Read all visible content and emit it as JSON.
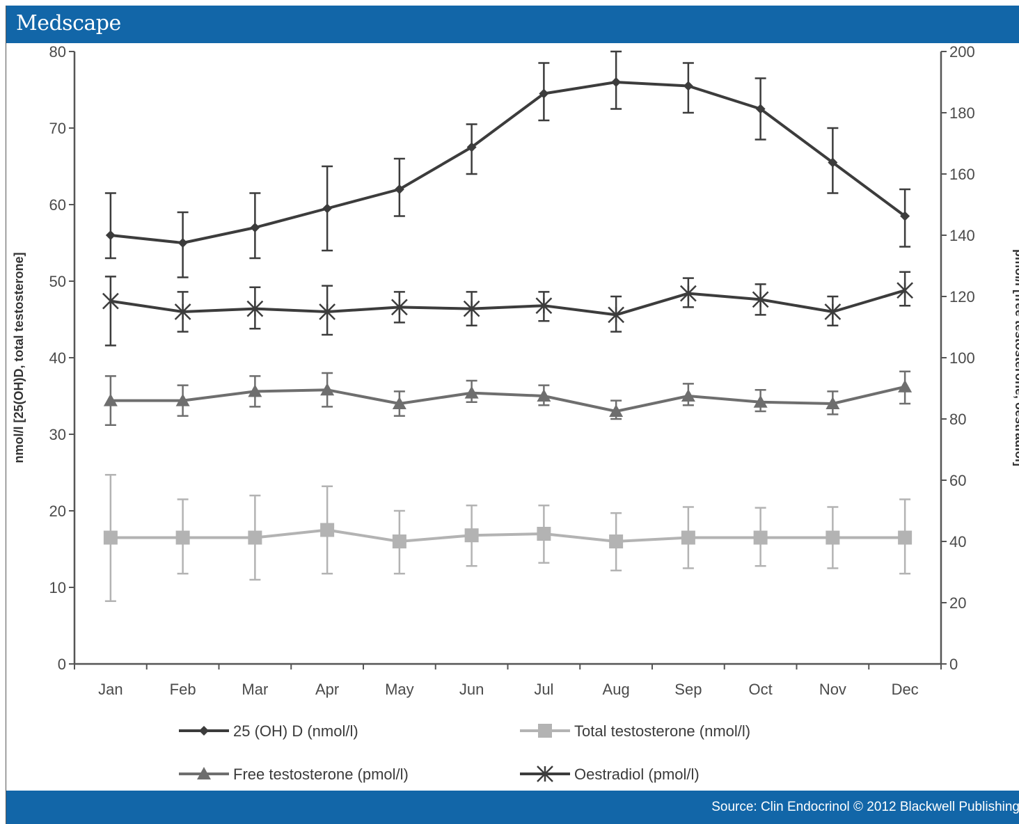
{
  "header": {
    "brand": "Medscape"
  },
  "footer": {
    "source": "Source: Clin Endocrinol © 2012 Blackwell Publishing"
  },
  "colors": {
    "bar": "#1266a8",
    "dark": "#3c3c3c",
    "mid": "#6e6e6e",
    "light": "#b3b3b3"
  },
  "chart_data": {
    "type": "line",
    "title": "",
    "x": [
      "Jan",
      "Feb",
      "Mar",
      "Apr",
      "May",
      "Jun",
      "Jul",
      "Aug",
      "Sep",
      "Oct",
      "Nov",
      "Dec"
    ],
    "xlabel": "",
    "ylabel": "nmol/l [25(OH)D, total testosterone]",
    "y2label": "pmol/l [free testosterone, oestradiol]",
    "ylim": [
      0,
      80
    ],
    "y2lim": [
      0,
      200
    ],
    "yticks": [
      0,
      10,
      20,
      30,
      40,
      50,
      60,
      70,
      80
    ],
    "y2ticks": [
      0,
      20,
      40,
      60,
      80,
      100,
      120,
      140,
      160,
      180,
      200
    ],
    "legend_position": "bottom",
    "series": [
      {
        "name": "25 (OH) D (nmol/l)",
        "axis": "left",
        "marker": "diamond",
        "color": "dark",
        "values": [
          56,
          55,
          57,
          59.5,
          62,
          67.5,
          74.5,
          76,
          75.5,
          72.5,
          65.5,
          58.5
        ],
        "err_low": [
          53,
          50.5,
          53,
          54,
          58.5,
          64,
          71,
          72.5,
          72,
          68.5,
          61.5,
          54.5
        ],
        "err_high": [
          61.5,
          59,
          61.5,
          65,
          66,
          70.5,
          78.5,
          80,
          78.5,
          76.5,
          70,
          62
        ]
      },
      {
        "name": "Total testosterone (nmol/l)",
        "axis": "left",
        "marker": "square",
        "color": "light",
        "values": [
          16.5,
          16.5,
          16.5,
          17.5,
          16,
          16.8,
          17,
          16,
          16.5,
          16.5,
          16.5,
          16.5
        ],
        "err_low": [
          8.2,
          11.8,
          11,
          11.8,
          11.8,
          12.8,
          13.2,
          12.2,
          12.5,
          12.8,
          12.5,
          11.8
        ],
        "err_high": [
          24.7,
          21.5,
          22,
          23.2,
          20,
          20.7,
          20.7,
          19.7,
          20.5,
          20.4,
          20.5,
          21.5
        ]
      },
      {
        "name": "Free testosterone (pmol/l)",
        "axis": "right",
        "marker": "triangle",
        "color": "mid",
        "values": [
          86,
          86,
          89,
          89.5,
          85,
          88.5,
          87.5,
          82.5,
          87.5,
          85.5,
          85,
          90.5
        ],
        "err_low": [
          78,
          81,
          84,
          84,
          81,
          85.5,
          84.5,
          80,
          84.5,
          82.5,
          81.5,
          85
        ],
        "err_high": [
          94,
          91,
          94,
          95,
          89,
          92.5,
          91,
          86,
          91.5,
          89.5,
          89,
          95.5
        ]
      },
      {
        "name": "Oestradiol (pmol/l)",
        "axis": "right",
        "marker": "asterisk",
        "color": "dark",
        "values": [
          118.5,
          115,
          116,
          115,
          116.5,
          116,
          117,
          114,
          121,
          119,
          115,
          122
        ],
        "err_low": [
          104,
          108.5,
          109.5,
          107.5,
          111.5,
          110.5,
          112,
          108.5,
          116.5,
          114,
          110.5,
          117
        ],
        "err_high": [
          126.5,
          121.5,
          123,
          123.5,
          121.5,
          121.5,
          121.5,
          120,
          126,
          124,
          120,
          128
        ]
      }
    ]
  }
}
